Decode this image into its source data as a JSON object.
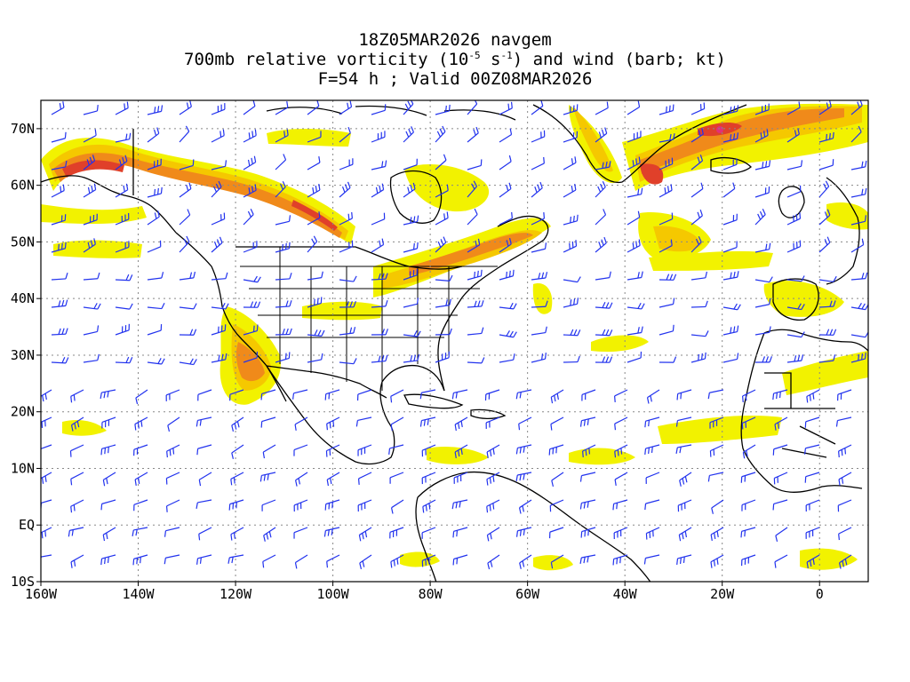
{
  "title": {
    "line1": "18Z05MAR2026 navgem",
    "line2_prefix": "700mb relative vorticity (10",
    "line2_exp1": "-5",
    "line2_mid": " s",
    "line2_exp2": "-1",
    "line2_suffix": ") and wind (barb; kt)",
    "line3": "F=54 h ; Valid 00Z08MAR2026"
  },
  "axes": {
    "lat_labels": [
      "70N",
      "60N",
      "50N",
      "40N",
      "30N",
      "20N",
      "10N",
      "EQ",
      "10S"
    ],
    "lon_labels": [
      "160W",
      "140W",
      "120W",
      "100W",
      "80W",
      "60W",
      "40W",
      "20W",
      "0"
    ],
    "lat_range": [
      -10,
      75
    ],
    "lon_range": [
      -160,
      10
    ],
    "grid": "dotted"
  },
  "colors": {
    "barb": "#2233ee",
    "coast": "#000000",
    "vort_yellow": "#f2f200",
    "vort_gold": "#f5c800",
    "vort_orange": "#f08a1a",
    "vort_red": "#e0402a",
    "vort_magenta": "#e0307a"
  }
}
